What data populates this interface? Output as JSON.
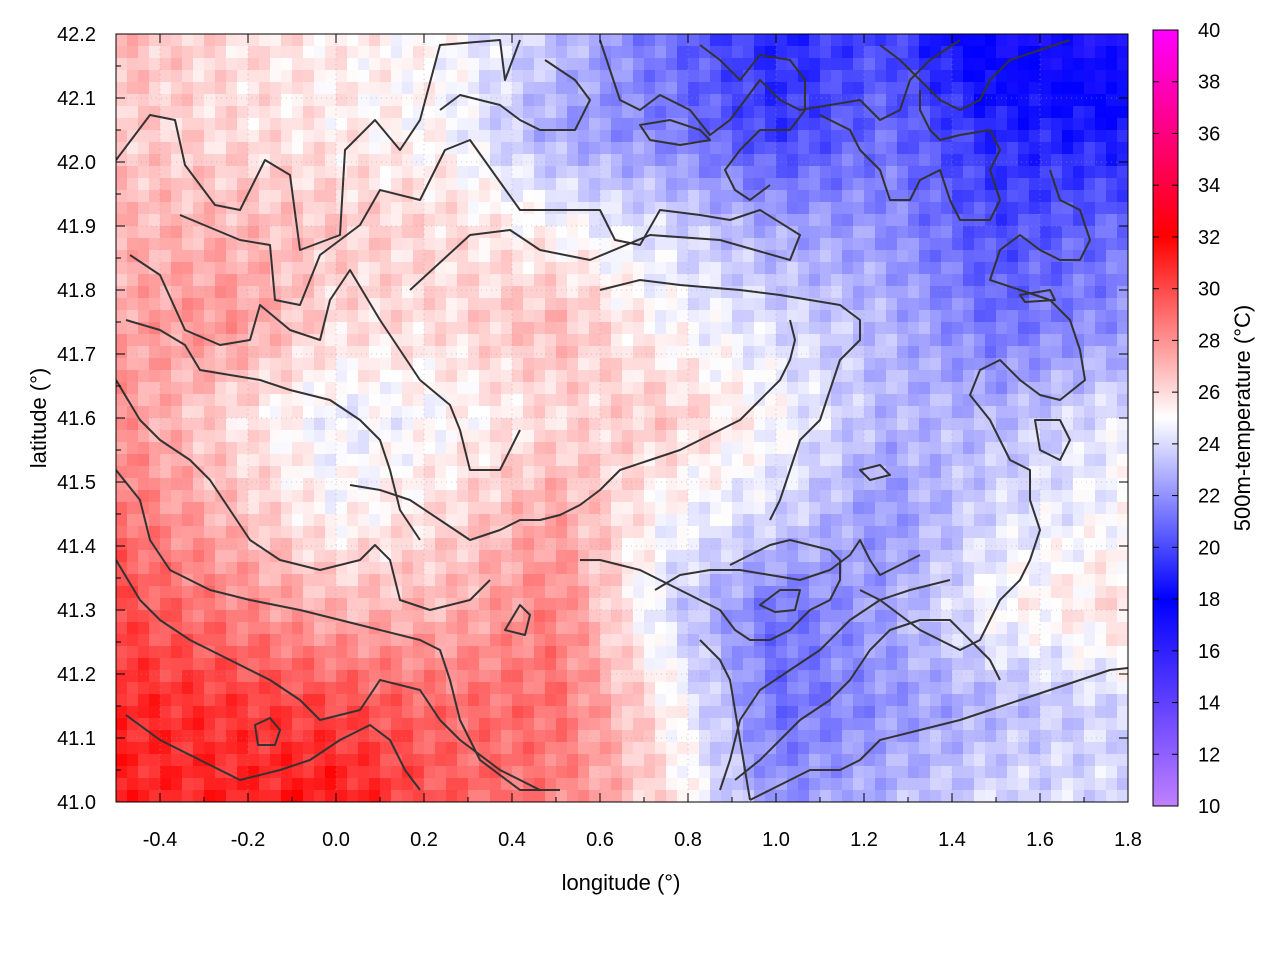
{
  "chart_data": {
    "type": "heatmap",
    "title": "",
    "xlabel": "longitude (°)",
    "ylabel": "latitude (°)",
    "colorbar_label": "500m-temperature (°C)",
    "xlim": [
      -0.5,
      1.8
    ],
    "ylim": [
      41.0,
      42.2
    ],
    "x_ticks": [
      -0.4,
      -0.2,
      0.0,
      0.2,
      0.4,
      0.6,
      0.8,
      1.0,
      1.2,
      1.4,
      1.6,
      1.8
    ],
    "x_tick_labels": [
      "-0.4",
      "-0.2",
      "0.0",
      "0.2",
      "0.4",
      "0.6",
      "0.8",
      "1.0",
      "1.2",
      "1.4",
      "1.6",
      "1.8"
    ],
    "y_ticks": [
      41.0,
      41.1,
      41.2,
      41.3,
      41.4,
      41.5,
      41.6,
      41.7,
      41.8,
      41.9,
      42.0,
      42.1,
      42.2
    ],
    "y_tick_labels": [
      "41.0",
      "41.1",
      "41.2",
      "41.3",
      "41.4",
      "41.5",
      "41.6",
      "41.7",
      "41.8",
      "41.9",
      "42.0",
      "42.1",
      "42.2"
    ],
    "colorbar_range": [
      10,
      40
    ],
    "colorbar_ticks": [
      10,
      12,
      14,
      16,
      18,
      20,
      22,
      24,
      26,
      28,
      30,
      32,
      34,
      36,
      38,
      40
    ],
    "colorbar_tick_labels": [
      "10",
      "12",
      "14",
      "16",
      "18",
      "20",
      "22",
      "24",
      "26",
      "28",
      "30",
      "32",
      "34",
      "36",
      "38",
      "40"
    ],
    "colormap": [
      {
        "value": 10,
        "color": "#c080ff"
      },
      {
        "value": 18,
        "color": "#0000ff"
      },
      {
        "value": 25,
        "color": "#ffffff"
      },
      {
        "value": 32,
        "color": "#ff0000"
      },
      {
        "value": 40,
        "color": "#ff00ff"
      }
    ],
    "grid": true,
    "contour_color": "#333333",
    "temperature_field": {
      "lon": [
        -0.5,
        -0.25,
        0.0,
        0.25,
        0.5,
        0.75,
        1.0,
        1.25,
        1.5,
        1.8
      ],
      "lat": [
        42.2,
        42.05,
        41.9,
        41.75,
        41.6,
        41.45,
        41.3,
        41.15,
        41.0
      ],
      "values": [
        [
          27,
          26,
          25.5,
          25,
          23.5,
          21,
          19,
          20,
          17,
          16.5
        ],
        [
          26.5,
          26,
          25.5,
          25,
          22.5,
          21.5,
          19.5,
          21,
          19,
          18.5
        ],
        [
          27,
          27,
          26.5,
          26,
          25,
          24,
          22.5,
          22,
          20,
          21
        ],
        [
          27.5,
          28,
          26,
          26,
          27,
          25,
          24,
          23,
          21,
          22
        ],
        [
          28,
          26,
          24.5,
          25,
          26,
          26.5,
          25,
          23,
          23,
          24.5
        ],
        [
          29,
          27,
          25,
          26,
          27.5,
          25,
          24,
          22,
          24,
          25
        ],
        [
          30,
          28.5,
          27,
          27,
          28.5,
          24,
          21,
          22.5,
          25,
          26
        ],
        [
          31,
          30.5,
          30,
          29,
          29,
          25.5,
          21,
          22,
          23,
          24
        ],
        [
          31,
          31,
          31.5,
          29.5,
          28.5,
          26,
          22,
          23,
          24,
          24
        ]
      ]
    }
  }
}
